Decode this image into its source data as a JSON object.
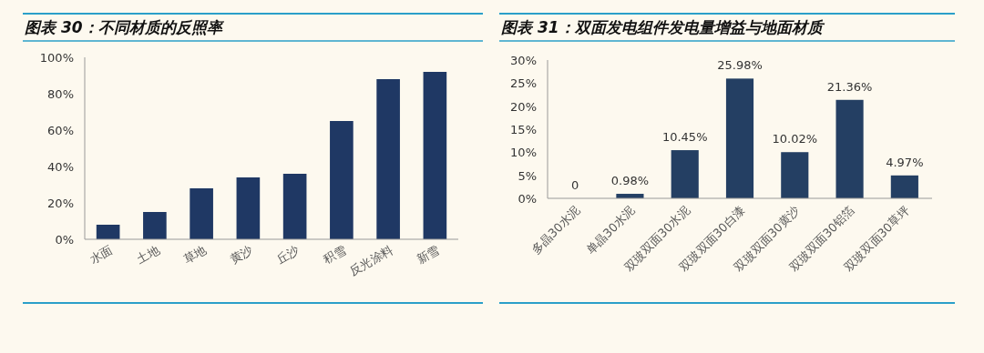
{
  "chart_data": [
    {
      "type": "bar",
      "title": "图表 30：不同材质的反照率",
      "categories": [
        "水面",
        "土地",
        "草地",
        "黄沙",
        "丘沙",
        "积雪",
        "反光涂料",
        "新雪"
      ],
      "values": [
        8,
        15,
        28,
        34,
        36,
        65,
        88,
        92
      ],
      "color": "#1f3864",
      "ylim": [
        0,
        100
      ],
      "yticks": [
        {
          "value": 0,
          "label": "0%"
        },
        {
          "value": 20,
          "label": "20%"
        },
        {
          "value": 40,
          "label": "40%"
        },
        {
          "value": 60,
          "label": "60%"
        },
        {
          "value": 80,
          "label": "80%"
        },
        {
          "value": 100,
          "label": "100%"
        }
      ],
      "grid": false
    },
    {
      "type": "bar",
      "title": "图表 31：双面发电组件发电量增益与地面材质",
      "categories": [
        "多晶30水泥",
        "单晶30水泥",
        "双玻双面30水泥",
        "双玻双面30白漆",
        "双玻双面30黄沙",
        "双玻双面30铝箔",
        "双玻双面30草坪"
      ],
      "values": [
        0,
        0.98,
        10.45,
        25.98,
        10.02,
        21.36,
        4.97
      ],
      "value_labels": [
        "0",
        "0.98%",
        "10.45%",
        "25.98%",
        "10.02%",
        "21.36%",
        "4.97%"
      ],
      "color": "#243f63",
      "ylim": [
        0,
        30
      ],
      "yticks": [
        {
          "value": 0,
          "label": "0%"
        },
        {
          "value": 5,
          "label": "5%"
        },
        {
          "value": 10,
          "label": "10%"
        },
        {
          "value": 15,
          "label": "15%"
        },
        {
          "value": 20,
          "label": "20%"
        },
        {
          "value": 25,
          "label": "25%"
        },
        {
          "value": 30,
          "label": "30%"
        }
      ],
      "grid": false
    }
  ]
}
